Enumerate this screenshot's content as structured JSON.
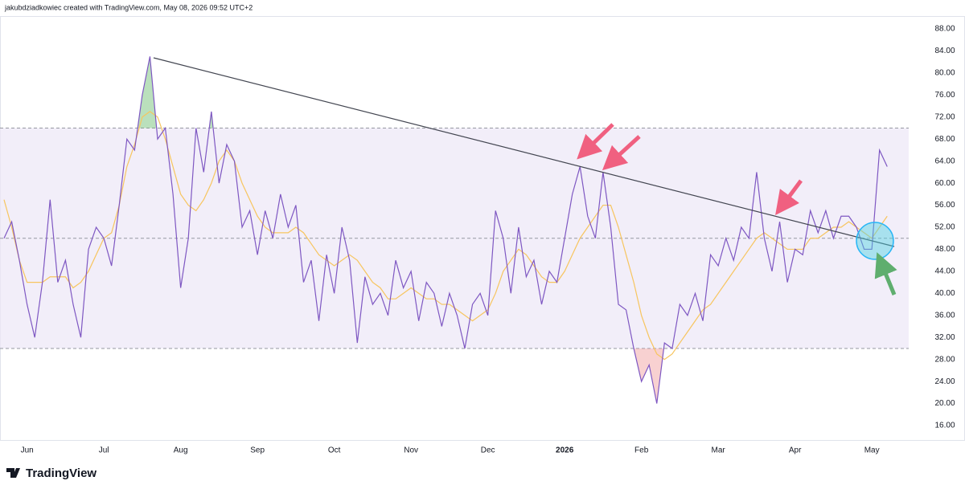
{
  "header": {
    "text": "jakubdziadkowiec created with TradingView.com, May 08, 2026 09:52 UTC+2"
  },
  "footer": {
    "brand": "TradingView"
  },
  "chart_data": {
    "type": "line",
    "categories": [
      null,
      null,
      null,
      "Jun",
      null,
      null,
      null,
      null,
      null,
      null,
      null,
      null,
      null,
      "Jul",
      null,
      null,
      null,
      null,
      null,
      null,
      null,
      null,
      null,
      "Aug",
      null,
      null,
      null,
      null,
      null,
      null,
      null,
      null,
      null,
      "Sep",
      null,
      null,
      null,
      null,
      null,
      null,
      null,
      null,
      null,
      "Oct",
      null,
      null,
      null,
      null,
      null,
      null,
      null,
      null,
      null,
      "Nov",
      null,
      null,
      null,
      null,
      null,
      null,
      null,
      null,
      null,
      "Dec",
      null,
      null,
      null,
      null,
      null,
      null,
      null,
      null,
      null,
      "2026",
      null,
      null,
      null,
      null,
      null,
      null,
      null,
      null,
      null,
      "Feb",
      null,
      null,
      null,
      null,
      null,
      null,
      null,
      null,
      null,
      "Mar",
      null,
      null,
      null,
      null,
      null,
      null,
      null,
      null,
      null,
      "Apr",
      null,
      null,
      null,
      null,
      null,
      null,
      null,
      null,
      null,
      "May",
      null,
      null
    ],
    "series": [
      {
        "color": "#7e57c2",
        "values": [
          50,
          53,
          46,
          38,
          32,
          42,
          57,
          42,
          46,
          38,
          32,
          48,
          52,
          50,
          45,
          56,
          68,
          66,
          76,
          83,
          68,
          70,
          58,
          41,
          50,
          70,
          62,
          73,
          60,
          67,
          64,
          52,
          55,
          47,
          55,
          50,
          58,
          52,
          56,
          42,
          46,
          35,
          47,
          40,
          52,
          46,
          31,
          43,
          38,
          40,
          36,
          46,
          41,
          44,
          35,
          42,
          40,
          34,
          40,
          36,
          30,
          38,
          40,
          36,
          55,
          50,
          40,
          52,
          43,
          46,
          38,
          44,
          42,
          50,
          58,
          63,
          54,
          50,
          62,
          52,
          38,
          37,
          30,
          24,
          27,
          20,
          31,
          30,
          38,
          36,
          40,
          35,
          47,
          45,
          50,
          46,
          52,
          50,
          62,
          50,
          44,
          53,
          42,
          48,
          47,
          55,
          51,
          55,
          50,
          54,
          54,
          52,
          48,
          48,
          66,
          63
        ]
      },
      {
        "color": "#f7c55f",
        "values": [
          57,
          52,
          46,
          42,
          42,
          42,
          43,
          43,
          43,
          41,
          42,
          44,
          47,
          50,
          51,
          56,
          63,
          67,
          72,
          73,
          72,
          68,
          63,
          58,
          56,
          55,
          57,
          60,
          64,
          66,
          64,
          60,
          57,
          54,
          52,
          51,
          51,
          51,
          52,
          51,
          49,
          47,
          46,
          45,
          46,
          47,
          46,
          44,
          42,
          41,
          39,
          39,
          40,
          41,
          40,
          39,
          39,
          38,
          38,
          37,
          36,
          35,
          36,
          37,
          40,
          44,
          46,
          48,
          47,
          45,
          43,
          42,
          42,
          44,
          47,
          50,
          52,
          54,
          56,
          56,
          52,
          47,
          42,
          36,
          32,
          29,
          28,
          29,
          31,
          33,
          35,
          37,
          38,
          40,
          42,
          44,
          46,
          48,
          50,
          51,
          50,
          49,
          48,
          48,
          48,
          50,
          50,
          51,
          52,
          52,
          53,
          52,
          51,
          50,
          52,
          54
        ]
      }
    ],
    "bands": {
      "upper": 70,
      "middle": 50,
      "lower": 30,
      "fill": "#ede7f6",
      "line": "#9598a1"
    },
    "overbought_fill": "#66bb6a",
    "oversold_fill": "#ef9a9a",
    "ylim": [
      14,
      90
    ],
    "yticks": [
      {
        "value": 16,
        "label": "16.00"
      },
      {
        "value": 20,
        "label": "20.00"
      },
      {
        "value": 24,
        "label": "24.00"
      },
      {
        "value": 28,
        "label": "28.00"
      },
      {
        "value": 32,
        "label": "32.00"
      },
      {
        "value": 36,
        "label": "36.00"
      },
      {
        "value": 40,
        "label": "40.00"
      },
      {
        "value": 44,
        "label": "44.00"
      },
      {
        "value": 48,
        "label": "48.00"
      },
      {
        "value": 52,
        "label": "52.00"
      },
      {
        "value": 56,
        "label": "56.00"
      },
      {
        "value": 60,
        "label": "60.00"
      },
      {
        "value": 64,
        "label": "64.00"
      },
      {
        "value": 68,
        "label": "68.00"
      },
      {
        "value": 72,
        "label": "72.00"
      },
      {
        "value": 76,
        "label": "76.00"
      },
      {
        "value": 80,
        "label": "80.00"
      },
      {
        "value": 84,
        "label": "84.00"
      },
      {
        "value": 88,
        "label": "88.00"
      }
    ]
  }
}
